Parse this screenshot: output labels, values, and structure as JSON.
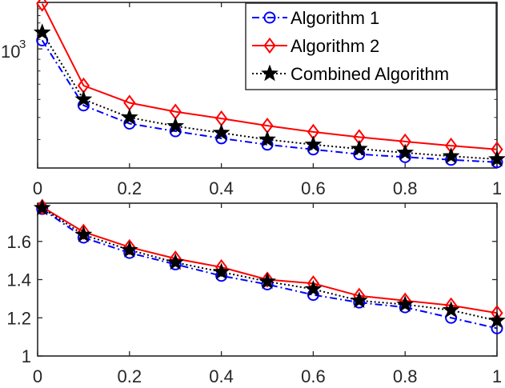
{
  "chart_data": [
    {
      "type": "line",
      "yscale": "log",
      "x": [
        0.01,
        0.1,
        0.2,
        0.3,
        0.4,
        0.5,
        0.6,
        0.7,
        0.8,
        0.9,
        1.0
      ],
      "xlim": [
        0,
        1
      ],
      "ylim": [
        300,
        1600
      ],
      "xticks": [
        "0",
        "0.2",
        "0.4",
        "0.6",
        "0.8",
        "1"
      ],
      "yticks": [
        {
          "value": 1000,
          "base": "10",
          "exp": "3"
        }
      ],
      "legend": {
        "placement": "top-right"
      },
      "series": [
        {
          "name": "Algorithm 1",
          "color": "#0000ff",
          "linestyle": "dashdot",
          "marker": "circle",
          "values": [
            1090,
            565,
            470,
            435,
            405,
            380,
            362,
            345,
            335,
            326,
            318
          ]
        },
        {
          "name": "Algorithm 2",
          "color": "#ff0000",
          "linestyle": "solid",
          "marker": "diamond",
          "values": [
            1580,
            690,
            580,
            530,
            495,
            460,
            432,
            410,
            392,
            376,
            362
          ]
        },
        {
          "name": "Combined Algorithm",
          "color": "#000000",
          "linestyle": "dotted",
          "marker": "star",
          "values": [
            1180,
            600,
            500,
            458,
            428,
            400,
            380,
            364,
            350,
            338,
            328
          ]
        }
      ]
    },
    {
      "type": "line",
      "x": [
        0.01,
        0.1,
        0.2,
        0.3,
        0.4,
        0.5,
        0.6,
        0.7,
        0.8,
        0.9,
        1.0
      ],
      "xlim": [
        0,
        1
      ],
      "ylim": [
        1,
        1.8
      ],
      "xticks": [
        "0",
        "0.2",
        "0.4",
        "0.6",
        "0.8",
        "1"
      ],
      "yticks": [
        "1",
        "1.2",
        "1.4",
        "1.6"
      ],
      "series": [
        {
          "name": "Algorithm 1",
          "color": "#0000ff",
          "linestyle": "dashdot",
          "marker": "circle",
          "values": [
            1.77,
            1.62,
            1.54,
            1.48,
            1.42,
            1.375,
            1.32,
            1.28,
            1.255,
            1.2,
            1.145
          ]
        },
        {
          "name": "Algorithm 2",
          "color": "#ff0000",
          "linestyle": "solid",
          "marker": "diamond",
          "values": [
            1.78,
            1.65,
            1.57,
            1.51,
            1.465,
            1.4,
            1.38,
            1.315,
            1.29,
            1.265,
            1.225
          ]
        },
        {
          "name": "Combined Algorithm",
          "color": "#000000",
          "linestyle": "dotted",
          "marker": "star",
          "values": [
            1.775,
            1.635,
            1.555,
            1.49,
            1.44,
            1.39,
            1.35,
            1.29,
            1.27,
            1.24,
            1.185
          ]
        }
      ]
    }
  ]
}
